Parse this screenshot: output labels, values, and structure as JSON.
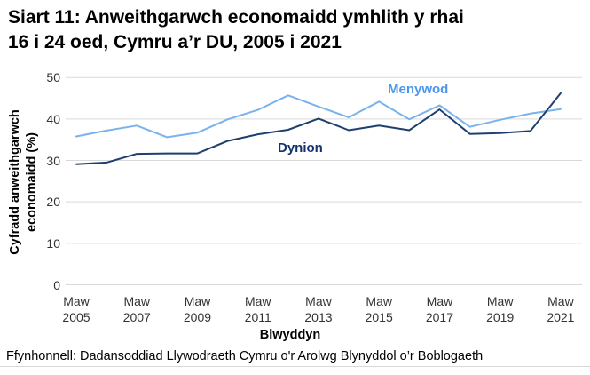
{
  "title": "Siart 11: Anweithgarwch economaidd ymhlith y rhai\n16 i 24 oed, Cymru a’r DU, 2005 i 2021",
  "footer": "Ffynhonnell: Dadansoddiad Llywodraeth Cymru o'r Arolwg Blynyddol o’r Boblogaeth",
  "chart_data": {
    "type": "line",
    "title": "Siart 11: Anweithgarwch economaidd ymhlith y rhai 16 i 24 oed, Cymru a’r DU, 2005 i 2021",
    "xlabel": "Blwyddyn",
    "ylabel": "Cyfradd anweithgarwch\neconomaidd (%)",
    "x": [
      2005,
      2006,
      2007,
      2008,
      2009,
      2010,
      2011,
      2012,
      2013,
      2014,
      2015,
      2016,
      2017,
      2018,
      2019,
      2020,
      2021
    ],
    "x_tick_years": [
      2005,
      2007,
      2009,
      2011,
      2013,
      2015,
      2017,
      2019,
      2021
    ],
    "x_tick_prefix": "Maw",
    "yticks": [
      0,
      10,
      20,
      30,
      40,
      50
    ],
    "ylim": [
      0,
      50
    ],
    "grid": "horizontal",
    "gridline_color": "#d9d9d9",
    "legend_position": "inline-annotations",
    "series": [
      {
        "name": "Menywod",
        "color": "#79b2ec",
        "label_color": "#4d96ec",
        "values": [
          35.8,
          37.2,
          38.4,
          35.6,
          36.7,
          39.9,
          42.2,
          45.7,
          43.0,
          40.4,
          44.2,
          39.9,
          43.3,
          38.1,
          39.8,
          41.3,
          42.4
        ]
      },
      {
        "name": "Dynion",
        "color": "#1f406f",
        "label_color": "#14336e",
        "values": [
          29.1,
          29.5,
          31.6,
          31.7,
          31.7,
          34.7,
          36.3,
          37.4,
          40.1,
          37.3,
          38.4,
          37.3,
          42.3,
          36.4,
          36.6,
          37.1,
          46.2
        ]
      }
    ]
  }
}
